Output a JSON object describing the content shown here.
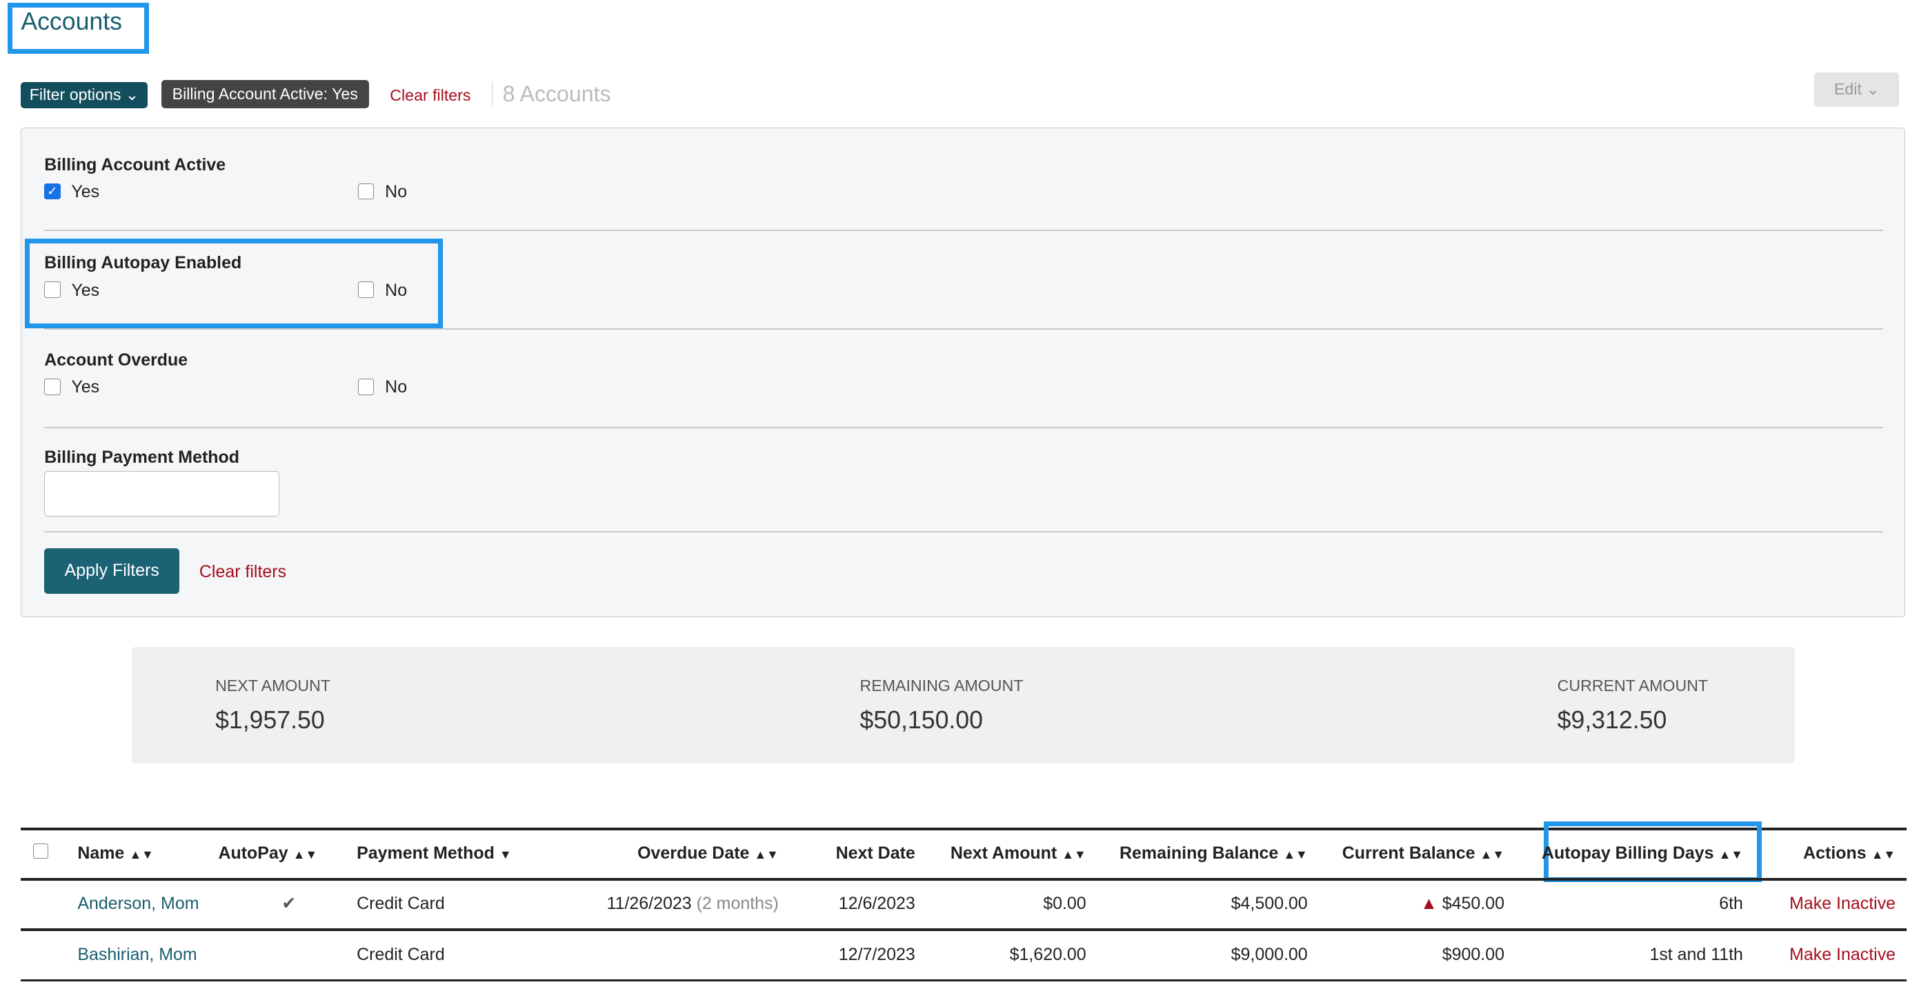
{
  "header": {
    "title": "Accounts",
    "filter_options": "Filter options",
    "active_chip": "Billing Account Active: Yes",
    "clear_filters": "Clear filters",
    "count": "8 Accounts",
    "edit": "Edit"
  },
  "filters": {
    "sections": [
      {
        "label": "Billing Account Active",
        "yes": "Yes",
        "no": "No",
        "yes_checked": true,
        "no_checked": false
      },
      {
        "label": "Billing Autopay Enabled",
        "yes": "Yes",
        "no": "No",
        "yes_checked": false,
        "no_checked": false
      },
      {
        "label": "Account Overdue",
        "yes": "Yes",
        "no": "No",
        "yes_checked": false,
        "no_checked": false
      }
    ],
    "payment_method_label": "Billing Payment Method",
    "payment_method_value": "",
    "apply": "Apply Filters",
    "clear": "Clear filters"
  },
  "summary": {
    "next_label": "NEXT AMOUNT",
    "next_value": "$1,957.50",
    "remaining_label": "REMAINING AMOUNT",
    "remaining_value": "$50,150.00",
    "current_label": "CURRENT AMOUNT",
    "current_value": "$9,312.50"
  },
  "table": {
    "columns": [
      "Name",
      "AutoPay",
      "Payment Method",
      "Overdue Date",
      "Next Date",
      "Next Amount",
      "Remaining Balance",
      "Current Balance",
      "Autopay Billing Days",
      "Actions"
    ],
    "rows": [
      {
        "name": "Anderson, Mom",
        "autopay": true,
        "method": "Credit Card",
        "overdue": "11/26/2023",
        "overdue_rel": "(2 months)",
        "next_date": "12/6/2023",
        "next_amount": "$0.00",
        "remaining": "$4,500.00",
        "current": "$450.00",
        "current_warning": true,
        "days": "6th",
        "action": "Make Inactive"
      },
      {
        "name": "Bashirian, Mom",
        "autopay": false,
        "method": "Credit Card",
        "overdue": "",
        "overdue_rel": "",
        "next_date": "12/7/2023",
        "next_amount": "$1,620.00",
        "remaining": "$9,000.00",
        "current": "$900.00",
        "current_warning": false,
        "days": "1st and 11th",
        "action": "Make Inactive"
      }
    ]
  }
}
